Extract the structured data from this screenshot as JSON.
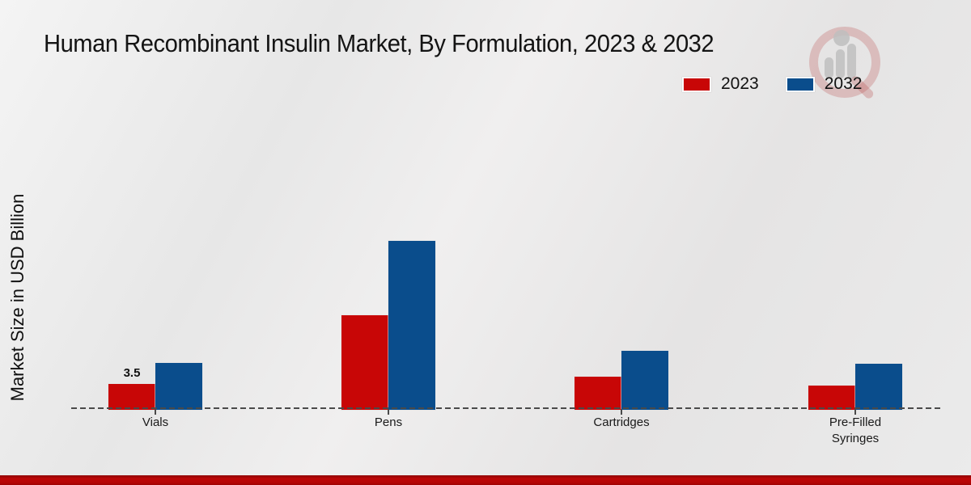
{
  "header": {
    "title": "Human Recombinant Insulin Market, By Formulation, 2023 & 2032",
    "watermark_icon": "magnifier-bar-chart-logo"
  },
  "legend": {
    "items": [
      {
        "label": "2023",
        "color": "#c80606"
      },
      {
        "label": "2032",
        "color": "#0a4d8c"
      }
    ]
  },
  "chart_data": {
    "type": "bar",
    "title": "Human Recombinant Insulin Market, By Formulation, 2023 & 2032",
    "xlabel": "",
    "ylabel": "Market Size in USD Billion",
    "categories": [
      "Vials",
      "Pens",
      "Cartridges",
      "Pre-Filled Syringes"
    ],
    "series": [
      {
        "name": "2023",
        "color": "#c80606",
        "values": [
          3.5,
          12.9,
          4.5,
          3.3
        ]
      },
      {
        "name": "2032",
        "color": "#0a4d8c",
        "values": [
          6.4,
          23.1,
          8.1,
          6.3
        ]
      }
    ],
    "annotations": [
      {
        "category": "Vials",
        "series": "2023",
        "text": "3.5"
      }
    ],
    "ylim": [
      0,
      25
    ],
    "grid": false,
    "y_axis_ticks_visible": false,
    "legend_position": "top-right",
    "baseline_style": "dashed"
  },
  "footer": {
    "accent_color": "#b30505"
  }
}
